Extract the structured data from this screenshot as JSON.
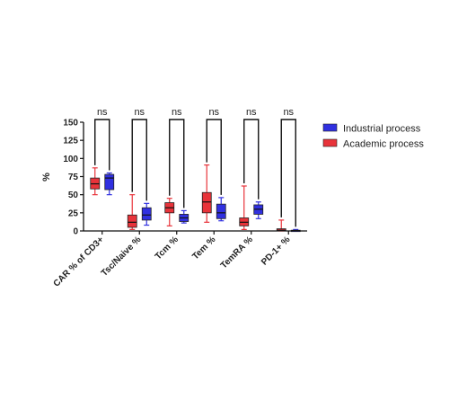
{
  "chart_data": {
    "type": "box",
    "ylabel": "%",
    "ylim": [
      0,
      150
    ],
    "yticks": [
      0,
      25,
      50,
      75,
      100,
      125,
      150
    ],
    "categories": [
      "CAR % of CD3+",
      "Tsc/Naive %",
      "Tcm %",
      "Tem %",
      "TemRA %",
      "PD-1+ %"
    ],
    "legend_position": "right",
    "significance": [
      "ns",
      "ns",
      "ns",
      "ns",
      "ns",
      "ns"
    ],
    "series": [
      {
        "name": "Academic process",
        "color": "#e8333a",
        "boxes": [
          {
            "min": 50,
            "q1": 58,
            "median": 65,
            "q3": 73,
            "max": 87
          },
          {
            "min": 2,
            "q1": 5,
            "median": 12,
            "q3": 22,
            "max": 50
          },
          {
            "min": 7,
            "q1": 25,
            "median": 32,
            "q3": 39,
            "max": 45
          },
          {
            "min": 12,
            "q1": 25,
            "median": 40,
            "q3": 53,
            "max": 91
          },
          {
            "min": 2,
            "q1": 7,
            "median": 12,
            "q3": 18,
            "max": 62
          },
          {
            "min": 0,
            "q1": 0,
            "median": 1,
            "q3": 3,
            "max": 15
          }
        ]
      },
      {
        "name": "Industrial process",
        "color": "#3030e0",
        "boxes": [
          {
            "min": 50,
            "q1": 57,
            "median": 73,
            "q3": 78,
            "max": 80
          },
          {
            "min": 8,
            "q1": 15,
            "median": 22,
            "q3": 32,
            "max": 38
          },
          {
            "min": 11,
            "q1": 13,
            "median": 18,
            "q3": 23,
            "max": 28
          },
          {
            "min": 14,
            "q1": 17,
            "median": 25,
            "q3": 37,
            "max": 46
          },
          {
            "min": 17,
            "q1": 23,
            "median": 30,
            "q3": 36,
            "max": 40
          },
          {
            "min": 0,
            "q1": 0,
            "median": 0.5,
            "q3": 1,
            "max": 2
          }
        ]
      }
    ]
  }
}
